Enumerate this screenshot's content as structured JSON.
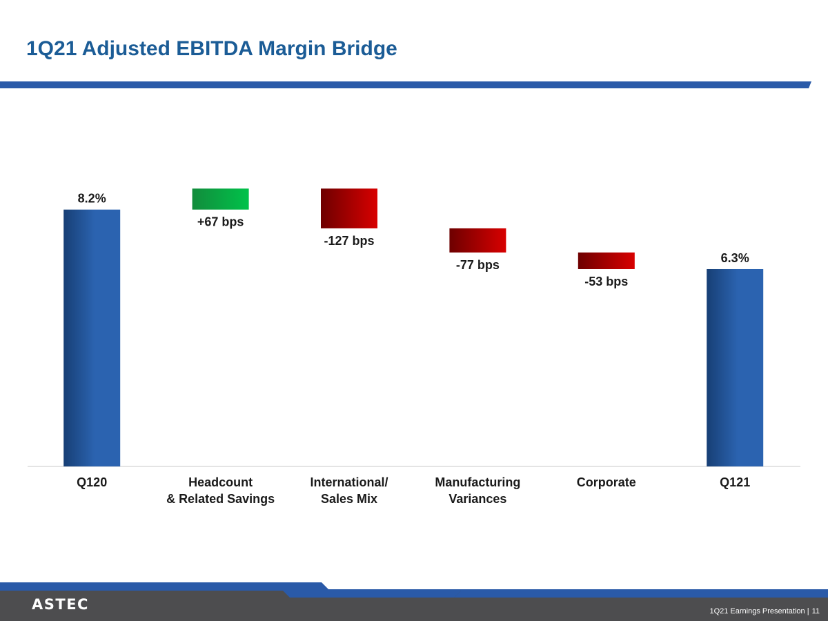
{
  "slide": {
    "title": "1Q21 Adjusted EBITDA Margin Bridge",
    "footer_label": "1Q21 Earnings Presentation |",
    "page_number": "11",
    "logo_text": "ASTEC"
  },
  "colors": {
    "title": "#1b5c96",
    "rule": "#2a5aa8",
    "total_bar_dark": "#173f75",
    "total_bar_light": "#2b63b0",
    "increase_dark": "#128c3c",
    "increase_light": "#00c24a",
    "decrease_dark": "#6e0000",
    "decrease_light": "#d80000",
    "footer_gray": "#4d4d4f"
  },
  "chart_data": {
    "type": "waterfall",
    "title": "",
    "xlabel": "",
    "ylabel": "",
    "unit": "%",
    "ylim": [
      0,
      9.78
    ],
    "grid": false,
    "categories": [
      [
        "Q120"
      ],
      [
        "Headcount",
        "& Related Savings"
      ],
      [
        "International/",
        "Sales Mix"
      ],
      [
        "Manufacturing",
        "Variances"
      ],
      [
        "Corporate"
      ],
      [
        "Q121"
      ]
    ],
    "steps": [
      {
        "kind": "total",
        "value": 8.2,
        "label": "8.2%"
      },
      {
        "kind": "increase",
        "value": 0.67,
        "label": "+67 bps"
      },
      {
        "kind": "decrease",
        "value": -1.27,
        "label": "-127 bps"
      },
      {
        "kind": "decrease",
        "value": -0.77,
        "label": "-77 bps"
      },
      {
        "kind": "decrease",
        "value": -0.53,
        "label": "-53 bps"
      },
      {
        "kind": "total",
        "value": 6.3,
        "label": "6.3%"
      }
    ]
  }
}
